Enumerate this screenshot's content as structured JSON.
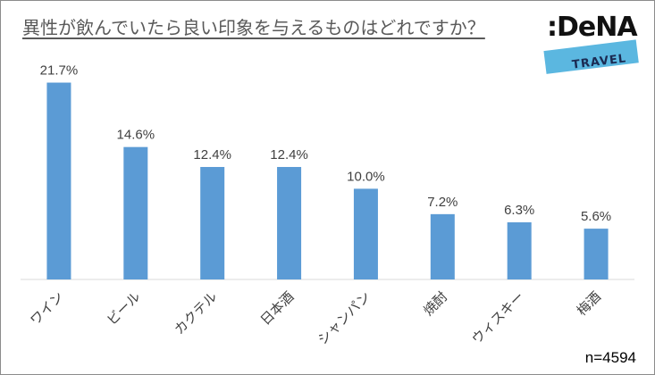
{
  "title": "異性が飲んでいたら良い印象を与えるものはどれですか？",
  "logo": {
    "wordmark": ":DeNA",
    "sub": "TRAVEL"
  },
  "note": "n=4594",
  "chart_data": {
    "type": "bar",
    "title": "異性が飲んでいたら良い印象を与えるものはどれですか？",
    "categories": [
      "ワイン",
      "ビール",
      "カクテル",
      "日本酒",
      "シャンパン",
      "焼酎",
      "ウィスキー",
      "梅酒"
    ],
    "values": [
      21.7,
      14.6,
      12.4,
      12.4,
      10.0,
      7.2,
      6.3,
      5.6
    ],
    "value_labels": [
      "21.7%",
      "14.6%",
      "12.4%",
      "12.4%",
      "10.0%",
      "7.2%",
      "6.3%",
      "5.6%"
    ],
    "ylim": [
      0,
      25
    ],
    "bar_color": "#5b9bd5",
    "grid": false,
    "xlabel": "",
    "ylabel": ""
  }
}
